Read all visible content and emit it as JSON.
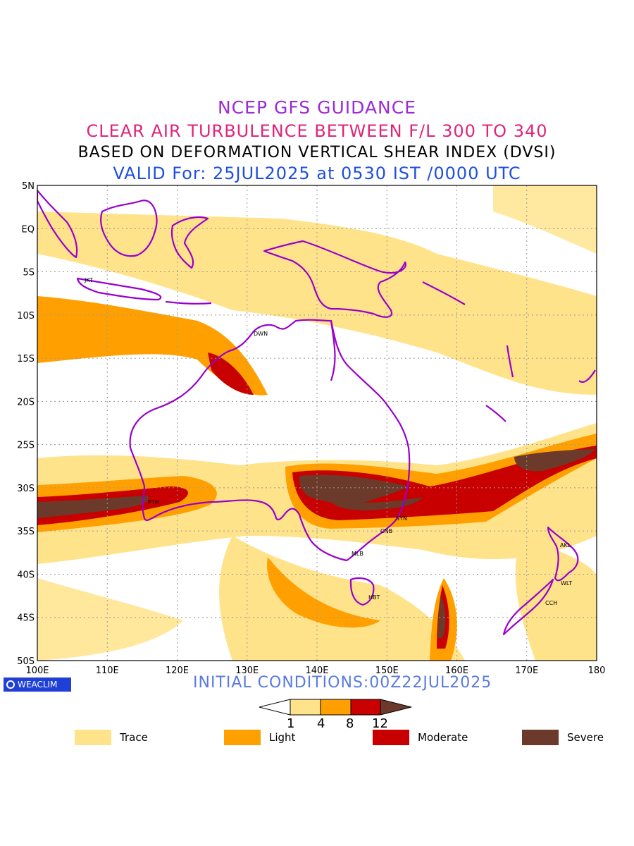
{
  "header": {
    "line1": "NCEP GFS GUIDANCE",
    "line2": "CLEAR AIR TURBULENCE BETWEEN F/L 300 TO 340",
    "line3": "BASED ON DEFORMATION VERTICAL SHEAR INDEX (DVSI)",
    "line4": "VALID For: 25JUL2025 at 0530 IST /0000 UTC"
  },
  "colors": {
    "line1": "#9a2cd6",
    "line2": "#e0247a",
    "line3": "#000000",
    "line4": "#1f4fe0",
    "trace": "#ffe38a",
    "light": "#ffa000",
    "moderate": "#c80000",
    "severe": "#6b3a2a",
    "coast": "#9900cc",
    "init": "#5a7ae0"
  },
  "map": {
    "lat_labels": [
      "5N",
      "EQ",
      "5S",
      "10S",
      "15S",
      "20S",
      "25S",
      "30S",
      "35S",
      "40S",
      "45S",
      "50S"
    ],
    "lon_labels": [
      "100E",
      "110E",
      "120E",
      "130E",
      "140E",
      "150E",
      "160E",
      "170E",
      "180"
    ],
    "cities": [
      "JKT",
      "DWN",
      "PTH",
      "SYN",
      "CNB",
      "MLB",
      "HBT",
      "AKL",
      "WLT",
      "CCH"
    ]
  },
  "footer": {
    "init": "INITIAL CONDITIONS:00Z22JUL2025",
    "brand": "WEACLIM"
  },
  "colorbar": {
    "ticks": [
      "1",
      "4",
      "8",
      "12"
    ]
  },
  "legend": [
    {
      "label": "Trace",
      "color": "#ffe38a"
    },
    {
      "label": "Light",
      "color": "#ffa000"
    },
    {
      "label": "Moderate",
      "color": "#c80000"
    },
    {
      "label": "Severe",
      "color": "#6b3a2a"
    }
  ]
}
